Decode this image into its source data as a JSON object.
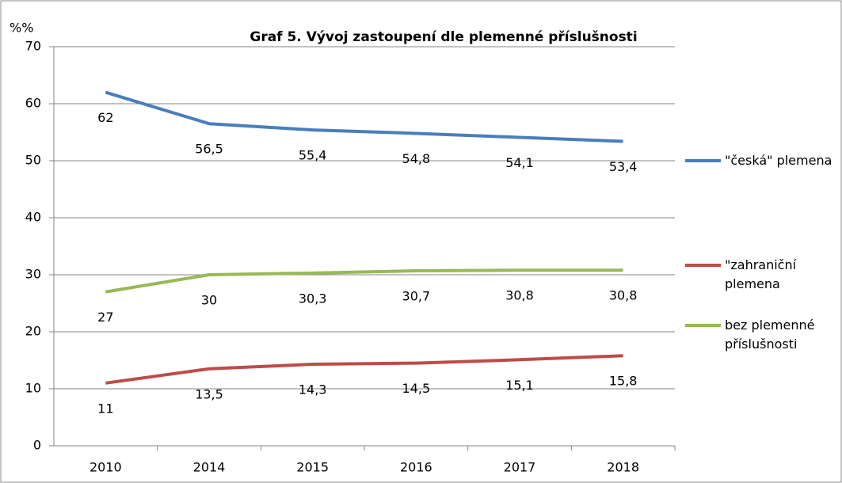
{
  "chart_data": {
    "type": "line",
    "title": "Graf 5. Vývoj  zastoupení dle  plemenné příslušnosti",
    "y_label": "%%",
    "categories": [
      "2010",
      "2014",
      "2015",
      "2016",
      "2017",
      "2018"
    ],
    "series": [
      {
        "name": "\"česká\" plemena",
        "color": "#4a7ebb",
        "values": [
          62,
          56.5,
          55.4,
          54.8,
          54.1,
          53.4
        ],
        "value_labels": [
          "62",
          "56,5",
          "55,4",
          "54,8",
          "54,1",
          "53,4"
        ]
      },
      {
        "name": "\"zahraniční plemena",
        "color": "#be4b48",
        "values": [
          11,
          13.5,
          14.3,
          14.5,
          15.1,
          15.8
        ],
        "value_labels": [
          "11",
          "13,5",
          "14,3",
          "14,5",
          "15,1",
          "15,8"
        ]
      },
      {
        "name": "bez plemenné příslušnosti",
        "color": "#98b954",
        "values": [
          27,
          30,
          30.3,
          30.7,
          30.8,
          30.8
        ],
        "value_labels": [
          "27",
          "30",
          "30,3",
          "30,7",
          "30,8",
          "30,8"
        ]
      }
    ],
    "ylim": [
      0,
      70
    ],
    "yticks": [
      0,
      10,
      20,
      30,
      40,
      50,
      60,
      70
    ],
    "grid": true,
    "legend": "right"
  }
}
